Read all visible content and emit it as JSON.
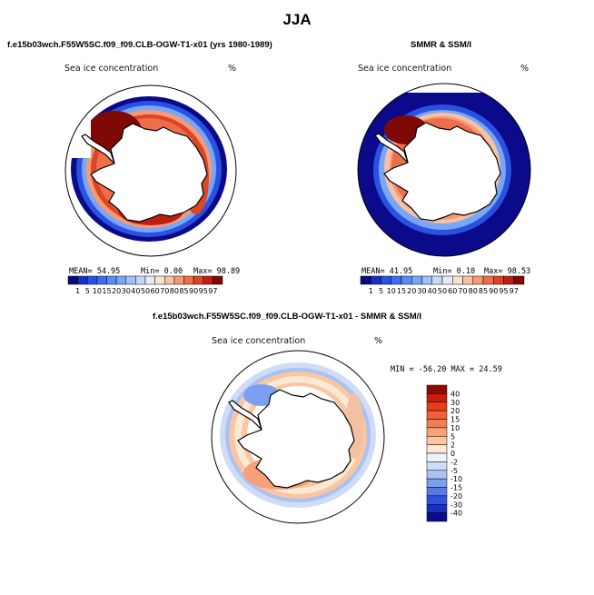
{
  "figure_title": "JJA",
  "colors": {
    "ocean_edge": "#0d0d8c",
    "land": "#ffffff",
    "coast": "#000000"
  },
  "chart_data": [
    {
      "type": "heatmap",
      "projection": "south-polar-stereographic",
      "case_title": "f.e15b03wch.F55W5SC.f09_f09.CLB-OGW-T1-x01 (yrs 1980-1989)",
      "field_label": "Sea ice concentration",
      "units": "%",
      "stats": {
        "mean": "MEAN=  54.95",
        "min": "Min=   0.00",
        "max": "Max=  98.89"
      },
      "colorbar_levels": [
        "1",
        "5",
        "10",
        "15",
        "20",
        "30",
        "40",
        "50",
        "60",
        "70",
        "80",
        "85",
        "90",
        "95",
        "97"
      ],
      "colorbar_colors": [
        "#0a0a7a",
        "#1530c8",
        "#2a52e0",
        "#3d6ef0",
        "#5a8cf5",
        "#7aa6f8",
        "#9fc0fb",
        "#c5d9fc",
        "#e6ecf7",
        "#fbe2d0",
        "#f8c0a4",
        "#f59a76",
        "#ee6e4a",
        "#dc4526",
        "#bf1e12",
        "#7f0a05"
      ]
    },
    {
      "type": "heatmap",
      "projection": "south-polar-stereographic",
      "case_title": "SMMR & SSM/I",
      "field_label": "Sea ice concentration",
      "units": "%",
      "stats": {
        "mean": "MEAN=  41.95",
        "min": "Min=   0.10",
        "max": "Max=  98.53"
      },
      "colorbar_levels": [
        "1",
        "5",
        "10",
        "15",
        "20",
        "30",
        "40",
        "50",
        "60",
        "70",
        "80",
        "85",
        "90",
        "95",
        "97"
      ],
      "colorbar_colors": [
        "#0a0a7a",
        "#1530c8",
        "#2a52e0",
        "#3d6ef0",
        "#5a8cf5",
        "#7aa6f8",
        "#9fc0fb",
        "#c5d9fc",
        "#e6ecf7",
        "#fbe2d0",
        "#f8c0a4",
        "#f59a76",
        "#ee6e4a",
        "#dc4526",
        "#bf1e12",
        "#7f0a05"
      ]
    },
    {
      "type": "heatmap",
      "projection": "south-polar-stereographic",
      "case_title": "f.e15b03wch.F55W5SC.f09_f09.CLB-OGW-T1-x01 - SMMR & SSM/I",
      "field_label": "Sea ice concentration",
      "units": "%",
      "stats": {
        "minmax": "MIN = -56.20 MAX =  24.59"
      },
      "colorbar_levels": [
        "40",
        "30",
        "20",
        "15",
        "10",
        "5",
        "2",
        "0",
        "-2",
        "-5",
        "-10",
        "-15",
        "-20",
        "-30",
        "-40"
      ],
      "colorbar_colors": [
        "#8c0c05",
        "#c81e0c",
        "#e63c1e",
        "#f2603a",
        "#f47c50",
        "#f7a07a",
        "#f9c6a2",
        "#fde8d4",
        "#eef2fb",
        "#cfdcf7",
        "#a9c2f3",
        "#7c9ff0",
        "#5479ea",
        "#2e52de",
        "#1830c0",
        "#0a0a8a"
      ]
    }
  ]
}
